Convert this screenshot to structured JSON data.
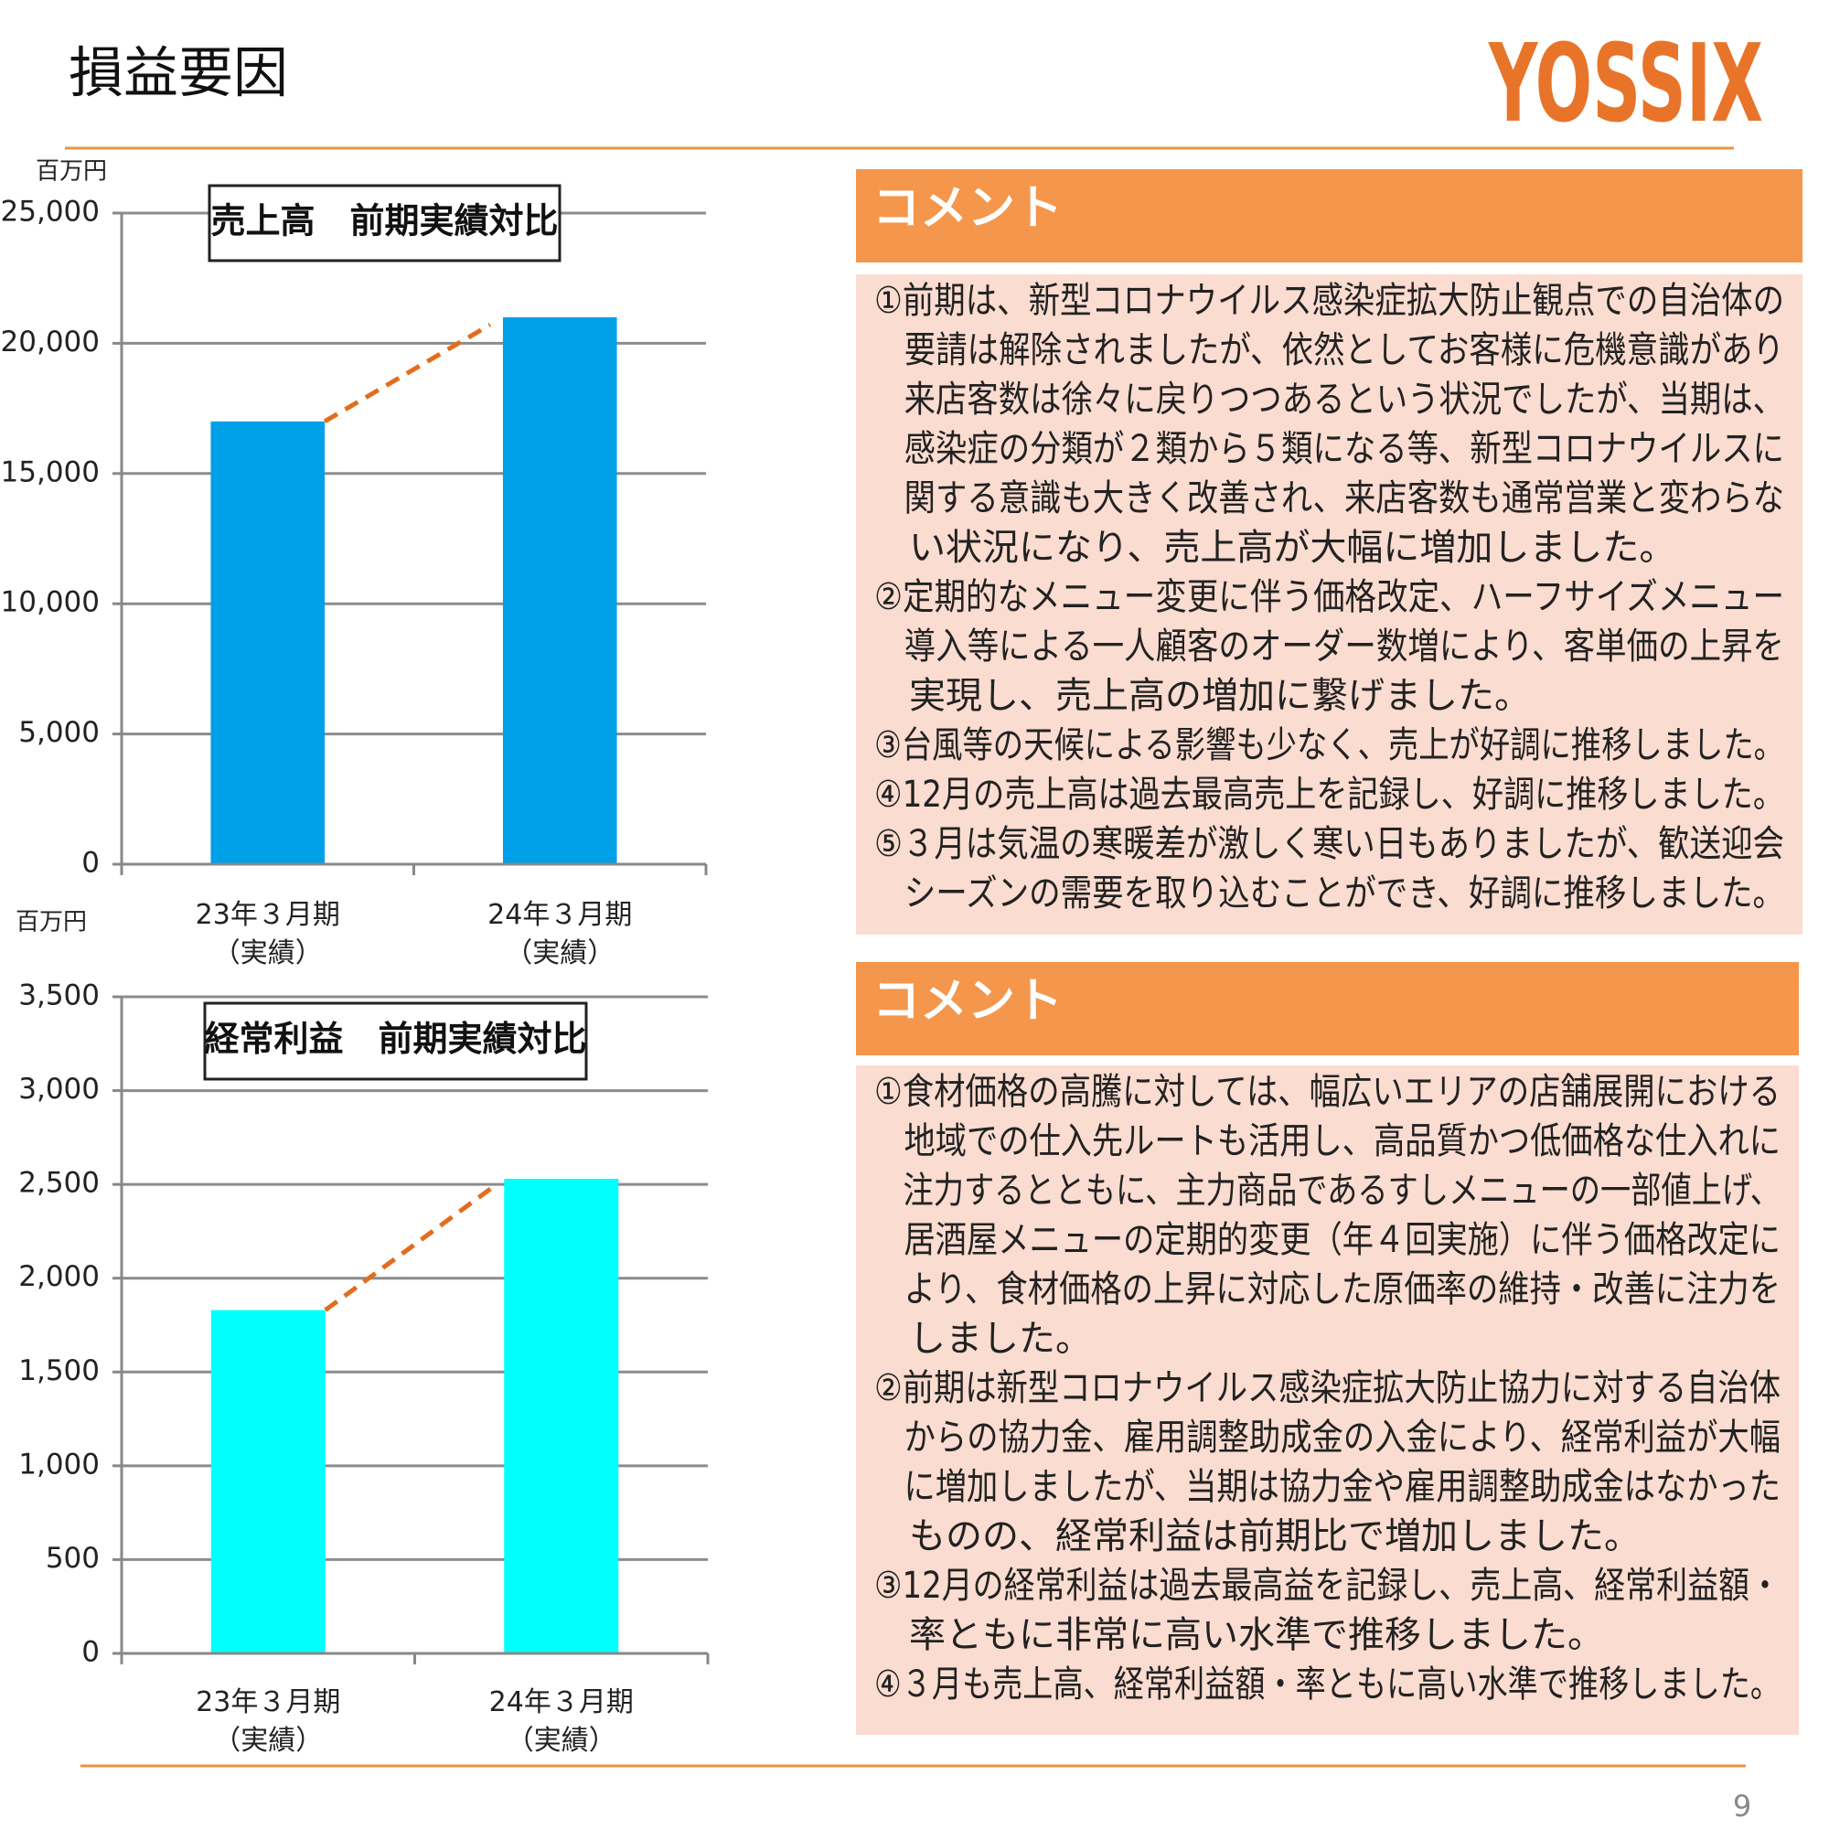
{
  "header": {
    "title": "損益要因",
    "logo": "YOSSIX"
  },
  "page_number": "9",
  "chart_data": [
    {
      "type": "bar",
      "title": "売上高　前期実績対比",
      "unit": "百万円",
      "categories": [
        "23年３月期\n（実績）",
        "24年３月期\n（実績）"
      ],
      "values": [
        17000,
        21000
      ],
      "color": "#00a0e9",
      "trend_color": "#e36c1d",
      "ylim": [
        0,
        25000
      ],
      "yticks": [
        0,
        {
          "value": 5000,
          "label": "5,000"
        },
        {
          "value": 10000,
          "label": "10,000"
        },
        {
          "value": 15000,
          "label": "15,000"
        },
        {
          "value": 20000,
          "label": "20,000"
        },
        {
          "value": 25000,
          "label": "25,000"
        }
      ],
      "grid": true
    },
    {
      "type": "bar",
      "title": "経常利益　前期実績対比",
      "unit": "百万円",
      "categories": [
        "23年３月期\n（実績）",
        "24年３月期\n（実績）"
      ],
      "values": [
        1830,
        2530
      ],
      "color": "#00ffff",
      "trend_color": "#e36c1d",
      "ylim": [
        0,
        3500
      ],
      "yticks": [
        0,
        500,
        {
          "value": 1000,
          "label": "1,000"
        },
        {
          "value": 1500,
          "label": "1,500"
        },
        {
          "value": 2000,
          "label": "2,000"
        },
        {
          "value": 2500,
          "label": "2,500"
        },
        {
          "value": 3000,
          "label": "3,000"
        },
        {
          "value": 3500,
          "label": "3,500"
        }
      ],
      "grid": true
    }
  ],
  "comments": [
    {
      "heading": "コメント",
      "items": [
        [
          "①前期は、新型コロナウイルス感染症拡大防止観点での自治体の",
          "要請は解除されましたが、依然としてお客様に危機意識があり",
          "来店客数は徐々に戻りつつあるという状況でしたが、当期は、",
          "感染症の分類が２類から５類になる等、新型コロナウイルスに",
          "関する意識も大きく改善され、来店客数も通常営業と変わらな",
          "い状況になり、売上高が大幅に増加しました。"
        ],
        [
          "②定期的なメニュー変更に伴う価格改定、ハーフサイズメニュー",
          "導入等による一人顧客のオーダー数増により、客単価の上昇を",
          "実現し、売上高の増加に繋げました。"
        ],
        [
          "③台風等の天候による影響も少なく、売上が好調に推移しました。"
        ],
        [
          "④12月の売上高は過去最高売上を記録し、好調に推移しました。"
        ],
        [
          "⑤３月は気温の寒暖差が激しく寒い日もありましたが、歓送迎会",
          "シーズンの需要を取り込むことができ、好調に推移しました。"
        ]
      ]
    },
    {
      "heading": "コメント",
      "items": [
        [
          "①食材価格の高騰に対しては、幅広いエリアの店舗展開における",
          "地域での仕入先ルートも活用し、高品質かつ低価格な仕入れに",
          "注力するとともに、主力商品であるすしメニューの一部値上げ、",
          "居酒屋メニューの定期的変更（年４回実施）に伴う価格改定に",
          "より、食材価格の上昇に対応した原価率の維持・改善に注力を",
          "しました。"
        ],
        [
          "②前期は新型コロナウイルス感染症拡大防止協力に対する自治体",
          "からの協力金、雇用調整助成金の入金により、経常利益が大幅",
          "に増加しましたが、当期は協力金や雇用調整助成金はなかった",
          "ものの、経常利益は前期比で増加しました。"
        ],
        [
          "③12月の経常利益は過去最高益を記録し、売上高、経常利益額・",
          "率ともに非常に高い水準で推移しました。"
        ],
        [
          "④３月も売上高、経常利益額・率ともに高い水準で推移しました。"
        ]
      ]
    }
  ]
}
